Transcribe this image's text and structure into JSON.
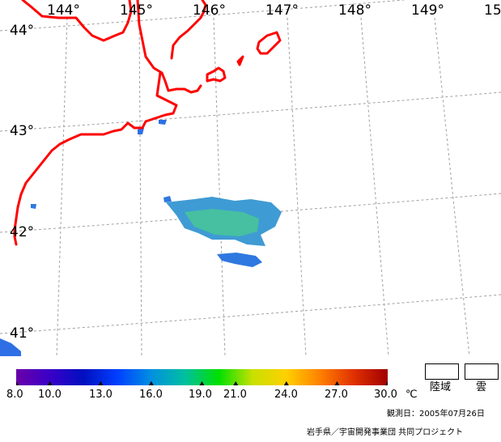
{
  "map": {
    "lon_labels": [
      "144°",
      "145°",
      "146°",
      "147°",
      "148°",
      "149°",
      "15"
    ],
    "lat_labels": [
      "44°",
      "43°",
      "42°",
      "41°"
    ],
    "colors": {
      "coastline": "#ff0000",
      "graticule": "#a0a0a0",
      "sst_patch_main": "#3f9bd4",
      "sst_patch_warm": "#46c0a0",
      "sst_patch_cool": "#2f78e0",
      "coast_blue": "#2f6fe6"
    }
  },
  "colorbar": {
    "ticks": [
      "8.0",
      "10.0",
      "13.0",
      "16.0",
      "19.0",
      "21.0",
      "24.0",
      "27.0",
      "30.0"
    ],
    "unit": "℃",
    "colors": [
      "#6a00a8",
      "#3a00c8",
      "#0010c0",
      "#0040ff",
      "#0090e0",
      "#00c0a0",
      "#00e000",
      "#c8e000",
      "#ffd000",
      "#ff8000",
      "#e03000",
      "#a00000"
    ]
  },
  "legend": {
    "land_label": "陸域",
    "cloud_label": "雲"
  },
  "footer": {
    "observation_date": "観測日：2005年07月26日",
    "credit": "岩手県／宇宙開発事業団 共同プロジェクト"
  }
}
